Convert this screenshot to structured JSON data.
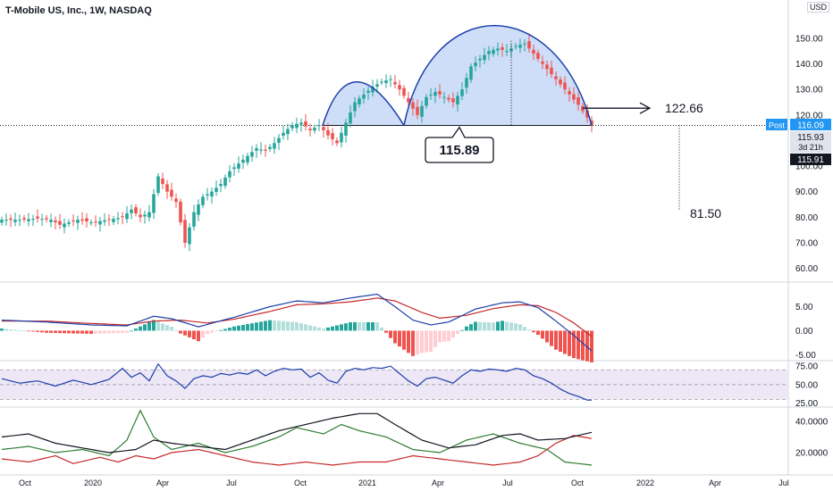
{
  "header": {
    "title": "T-Mobile US, Inc., 1W, NASDAQ",
    "currency_top": " ",
    "currency_unit": "USD"
  },
  "colors": {
    "up": "#26a69a",
    "down": "#ef5350",
    "arc": "#1c3faa",
    "fill": "#c7d8f7",
    "post": "#2196f3",
    "dark": "#131722",
    "macd_line": "#1c3faa",
    "signal_line": "#c62828",
    "rsi_line": "#1c3faa",
    "rsi_band": "#ede7f6",
    "dmi_plus": "#2e7d32",
    "dmi_minus": "#c62828",
    "adx": "#131722"
  },
  "chart_data": [
    {
      "type": "candlestick",
      "panel": "price",
      "title": "T-Mobile US, Inc., 1W, NASDAQ",
      "ylim": [
        56,
        158
      ],
      "yticks": [
        60,
        70,
        80,
        90,
        100,
        110,
        120,
        130,
        140,
        150
      ],
      "ytick_labels": [
        "60.00",
        "70.00",
        "80.00",
        "90.00",
        "100.00",
        "110.00",
        "120.00",
        "130.00",
        "140.00",
        "150.00"
      ],
      "xticks": [
        "Oct",
        "2020",
        "Apr",
        "Jul",
        "Oct",
        "2021",
        "Apr",
        "Jul",
        "Oct",
        "2022",
        "Apr",
        "Jul"
      ],
      "anchors": [
        [
          0,
          79
        ],
        [
          4,
          79
        ],
        [
          8,
          79.5
        ],
        [
          11,
          79
        ],
        [
          13,
          77
        ],
        [
          17,
          79
        ],
        [
          20,
          78
        ],
        [
          24,
          79
        ],
        [
          27,
          80
        ],
        [
          29,
          83
        ],
        [
          31,
          80
        ],
        [
          33,
          82
        ],
        [
          35,
          96
        ],
        [
          37,
          90
        ],
        [
          39,
          86
        ],
        [
          41,
          70
        ],
        [
          43,
          82
        ],
        [
          45,
          88
        ],
        [
          47,
          90
        ],
        [
          49,
          93
        ],
        [
          51,
          98
        ],
        [
          53,
          101
        ],
        [
          55,
          104
        ],
        [
          57,
          107
        ],
        [
          59,
          106
        ],
        [
          61,
          109
        ],
        [
          63,
          113
        ],
        [
          65,
          116
        ],
        [
          67,
          117
        ],
        [
          69,
          114
        ],
        [
          71,
          116
        ],
        [
          73,
          112
        ],
        [
          75,
          109
        ],
        [
          77,
          117
        ],
        [
          79,
          125
        ],
        [
          81,
          128
        ],
        [
          83,
          131
        ],
        [
          85,
          133
        ],
        [
          87,
          134
        ],
        [
          89,
          130
        ],
        [
          91,
          125
        ],
        [
          93,
          120
        ],
        [
          95,
          127
        ],
        [
          97,
          129
        ],
        [
          99,
          127
        ],
        [
          101,
          125
        ],
        [
          103,
          130
        ],
        [
          105,
          139
        ],
        [
          107,
          142
        ],
        [
          109,
          145
        ],
        [
          111,
          146
        ],
        [
          113,
          145
        ],
        [
          115,
          147
        ],
        [
          117,
          148
        ],
        [
          119,
          144
        ],
        [
          121,
          140
        ],
        [
          123,
          136
        ],
        [
          125,
          132
        ],
        [
          127,
          128
        ],
        [
          129,
          124
        ],
        [
          131,
          119
        ],
        [
          132,
          116
        ]
      ],
      "annotations": {
        "neckline": 115.89,
        "neckline_label": "115.89",
        "target_label_1": "122.66",
        "target_label_2": "81.50",
        "last_price": 116.09,
        "post_label": "Post",
        "post_value": "116.09",
        "close_value": "115.93",
        "countdown": "3d 21h",
        "prev_value": "115.91"
      }
    },
    {
      "type": "line",
      "panel": "macd",
      "ylim": [
        -5.5,
        9
      ],
      "yticks": [
        -5,
        0,
        5
      ],
      "ytick_labels": [
        "-5.00",
        "0.00",
        "5.00"
      ],
      "series": [
        {
          "role": "macd",
          "anchors": [
            [
              0,
              2.2
            ],
            [
              10,
              1.8
            ],
            [
              20,
              1.2
            ],
            [
              28,
              1.0
            ],
            [
              34,
              3.0
            ],
            [
              38,
              2.5
            ],
            [
              44,
              0.8
            ],
            [
              52,
              2.8
            ],
            [
              60,
              5.0
            ],
            [
              66,
              6.2
            ],
            [
              72,
              5.8
            ],
            [
              78,
              6.8
            ],
            [
              84,
              7.6
            ],
            [
              88,
              5.0
            ],
            [
              92,
              2.2
            ],
            [
              96,
              1.2
            ],
            [
              100,
              1.8
            ],
            [
              106,
              4.5
            ],
            [
              112,
              5.8
            ],
            [
              116,
              6.0
            ],
            [
              120,
              4.8
            ],
            [
              124,
              2.0
            ],
            [
              128,
              -1.0
            ],
            [
              132,
              -4.2
            ]
          ]
        },
        {
          "role": "signal",
          "anchors": [
            [
              0,
              2.0
            ],
            [
              10,
              2.0
            ],
            [
              20,
              1.5
            ],
            [
              28,
              1.2
            ],
            [
              34,
              2.0
            ],
            [
              40,
              2.2
            ],
            [
              46,
              1.6
            ],
            [
              52,
              2.4
            ],
            [
              60,
              4.0
            ],
            [
              66,
              5.4
            ],
            [
              72,
              5.6
            ],
            [
              78,
              6.0
            ],
            [
              84,
              6.8
            ],
            [
              88,
              6.2
            ],
            [
              94,
              3.8
            ],
            [
              98,
              2.6
            ],
            [
              104,
              3.2
            ],
            [
              110,
              4.6
            ],
            [
              116,
              5.4
            ],
            [
              120,
              5.2
            ],
            [
              124,
              3.8
            ],
            [
              128,
              1.6
            ],
            [
              132,
              -1.2
            ]
          ]
        }
      ]
    },
    {
      "type": "line",
      "panel": "rsi",
      "ylim": [
        22,
        80
      ],
      "yticks": [
        25,
        50,
        75
      ],
      "ytick_labels": [
        "25.00",
        "50.00",
        "75.00"
      ],
      "band": [
        30,
        70
      ],
      "anchors": [
        [
          0,
          58
        ],
        [
          4,
          52
        ],
        [
          8,
          55
        ],
        [
          12,
          48
        ],
        [
          16,
          56
        ],
        [
          20,
          50
        ],
        [
          24,
          57
        ],
        [
          27,
          72
        ],
        [
          29,
          60
        ],
        [
          31,
          66
        ],
        [
          33,
          55
        ],
        [
          35,
          78
        ],
        [
          37,
          62
        ],
        [
          39,
          55
        ],
        [
          41,
          45
        ],
        [
          43,
          58
        ],
        [
          45,
          62
        ],
        [
          47,
          60
        ],
        [
          49,
          65
        ],
        [
          51,
          63
        ],
        [
          53,
          66
        ],
        [
          55,
          64
        ],
        [
          57,
          70
        ],
        [
          59,
          62
        ],
        [
          61,
          68
        ],
        [
          63,
          72
        ],
        [
          65,
          70
        ],
        [
          67,
          71
        ],
        [
          69,
          60
        ],
        [
          71,
          66
        ],
        [
          73,
          56
        ],
        [
          75,
          52
        ],
        [
          77,
          68
        ],
        [
          79,
          72
        ],
        [
          81,
          70
        ],
        [
          83,
          73
        ],
        [
          85,
          72
        ],
        [
          87,
          75
        ],
        [
          89,
          65
        ],
        [
          91,
          55
        ],
        [
          93,
          48
        ],
        [
          95,
          58
        ],
        [
          97,
          60
        ],
        [
          99,
          56
        ],
        [
          101,
          52
        ],
        [
          103,
          62
        ],
        [
          105,
          70
        ],
        [
          107,
          68
        ],
        [
          109,
          71
        ],
        [
          111,
          70
        ],
        [
          113,
          68
        ],
        [
          115,
          72
        ],
        [
          117,
          70
        ],
        [
          119,
          62
        ],
        [
          121,
          58
        ],
        [
          123,
          52
        ],
        [
          125,
          44
        ],
        [
          127,
          38
        ],
        [
          129,
          34
        ],
        [
          131,
          29
        ],
        [
          132,
          29
        ]
      ]
    },
    {
      "type": "line",
      "panel": "dmi",
      "ylim": [
        8,
        48
      ],
      "yticks": [
        20,
        40
      ],
      "ytick_labels": [
        "20.0000",
        "40.0000"
      ],
      "series": [
        {
          "role": "adx",
          "anchors": [
            [
              0,
              30
            ],
            [
              6,
              32
            ],
            [
              12,
              26
            ],
            [
              18,
              23
            ],
            [
              24,
              20
            ],
            [
              30,
              22
            ],
            [
              34,
              28
            ],
            [
              38,
              26
            ],
            [
              44,
              24
            ],
            [
              50,
              22
            ],
            [
              56,
              28
            ],
            [
              62,
              34
            ],
            [
              68,
              38
            ],
            [
              74,
              42
            ],
            [
              80,
              45
            ],
            [
              84,
              45
            ],
            [
              88,
              38
            ],
            [
              94,
              28
            ],
            [
              100,
              23
            ],
            [
              106,
              25
            ],
            [
              112,
              31
            ],
            [
              116,
              32
            ],
            [
              120,
              28
            ],
            [
              126,
              29
            ],
            [
              132,
              33
            ]
          ]
        },
        {
          "role": "di_plus",
          "anchors": [
            [
              0,
              22
            ],
            [
              6,
              24
            ],
            [
              12,
              20
            ],
            [
              18,
              22
            ],
            [
              24,
              18
            ],
            [
              28,
              28
            ],
            [
              31,
              47
            ],
            [
              34,
              30
            ],
            [
              38,
              22
            ],
            [
              44,
              26
            ],
            [
              50,
              20
            ],
            [
              56,
              24
            ],
            [
              62,
              30
            ],
            [
              66,
              36
            ],
            [
              72,
              32
            ],
            [
              76,
              38
            ],
            [
              80,
              34
            ],
            [
              86,
              30
            ],
            [
              92,
              22
            ],
            [
              98,
              20
            ],
            [
              104,
              28
            ],
            [
              110,
              32
            ],
            [
              116,
              26
            ],
            [
              122,
              22
            ],
            [
              126,
              14
            ],
            [
              132,
              12
            ]
          ]
        },
        {
          "role": "di_minus",
          "anchors": [
            [
              0,
              16
            ],
            [
              6,
              14
            ],
            [
              12,
              18
            ],
            [
              16,
              13
            ],
            [
              22,
              17
            ],
            [
              26,
              14
            ],
            [
              30,
              18
            ],
            [
              34,
              16
            ],
            [
              38,
              20
            ],
            [
              44,
              22
            ],
            [
              50,
              18
            ],
            [
              56,
              14
            ],
            [
              62,
              12
            ],
            [
              68,
              14
            ],
            [
              74,
              12
            ],
            [
              80,
              14
            ],
            [
              86,
              14
            ],
            [
              92,
              18
            ],
            [
              98,
              16
            ],
            [
              104,
              14
            ],
            [
              110,
              12
            ],
            [
              116,
              14
            ],
            [
              120,
              18
            ],
            [
              124,
              26
            ],
            [
              128,
              31
            ],
            [
              132,
              29
            ]
          ]
        }
      ]
    }
  ]
}
